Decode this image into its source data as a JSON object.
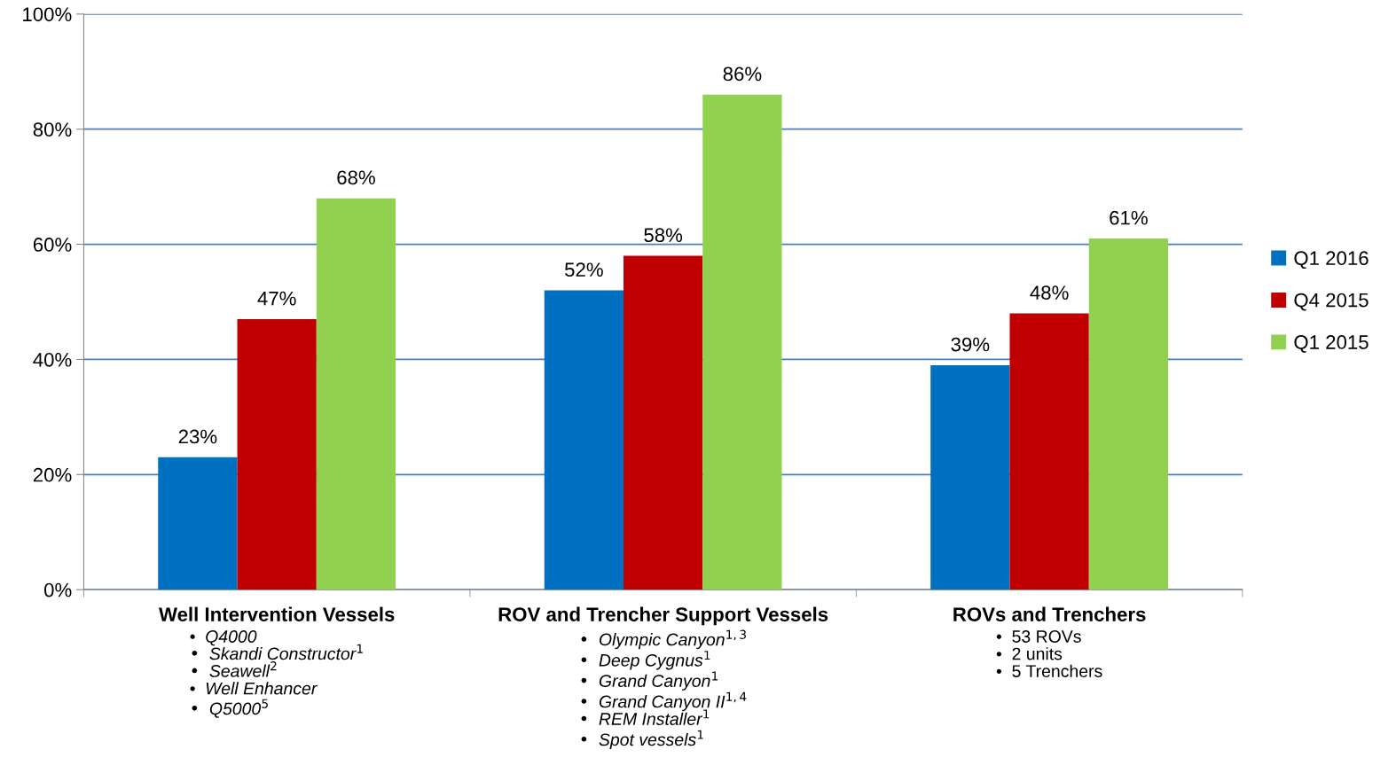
{
  "chart_data": {
    "type": "bar",
    "categories": [
      "Well Intervention Vessels",
      "ROV and Trencher Support Vessels",
      "ROVs and Trenchers"
    ],
    "series": [
      {
        "name": "Q1 2016",
        "color": "#0070c0",
        "values": [
          23,
          52,
          39
        ],
        "value_labels": [
          "23%",
          "52%",
          "39%"
        ]
      },
      {
        "name": "Q4 2015",
        "color": "#c00000",
        "values": [
          47,
          58,
          48
        ],
        "value_labels": [
          "47%",
          "58%",
          "48%"
        ]
      },
      {
        "name": "Q1 2015",
        "color": "#92d050",
        "values": [
          68,
          86,
          61
        ],
        "value_labels": [
          "68%",
          "86%",
          "61%"
        ]
      }
    ],
    "ylim": [
      0,
      100
    ],
    "yticks": [
      {
        "value": 0,
        "label": "0%"
      },
      {
        "value": 20,
        "label": "20%"
      },
      {
        "value": 40,
        "label": "40%"
      },
      {
        "value": 60,
        "label": "60%"
      },
      {
        "value": 80,
        "label": "80%"
      },
      {
        "value": 100,
        "label": "100%"
      }
    ],
    "grid": "y",
    "legend": "right",
    "annotations": [
      "•  Q4000\n•  Skandi Constructor$^{1}$\n•  Seawell$^{2}$\n•  Well Enhancer\n•  Q5000$^{5}$",
      "•  Olympic Canyon$^{1,3}$\n•  Deep Cygnus$^{1}$\n•  Grand Canyon$^{1}$\n•  Grand Canyon II$^{1,4}$\n•  REM Installer$^{1}$\n•  Spot vessels$^{1}$",
      "•  53 ROVs\n•  2 units\n•  5 Trenchers"
    ]
  }
}
